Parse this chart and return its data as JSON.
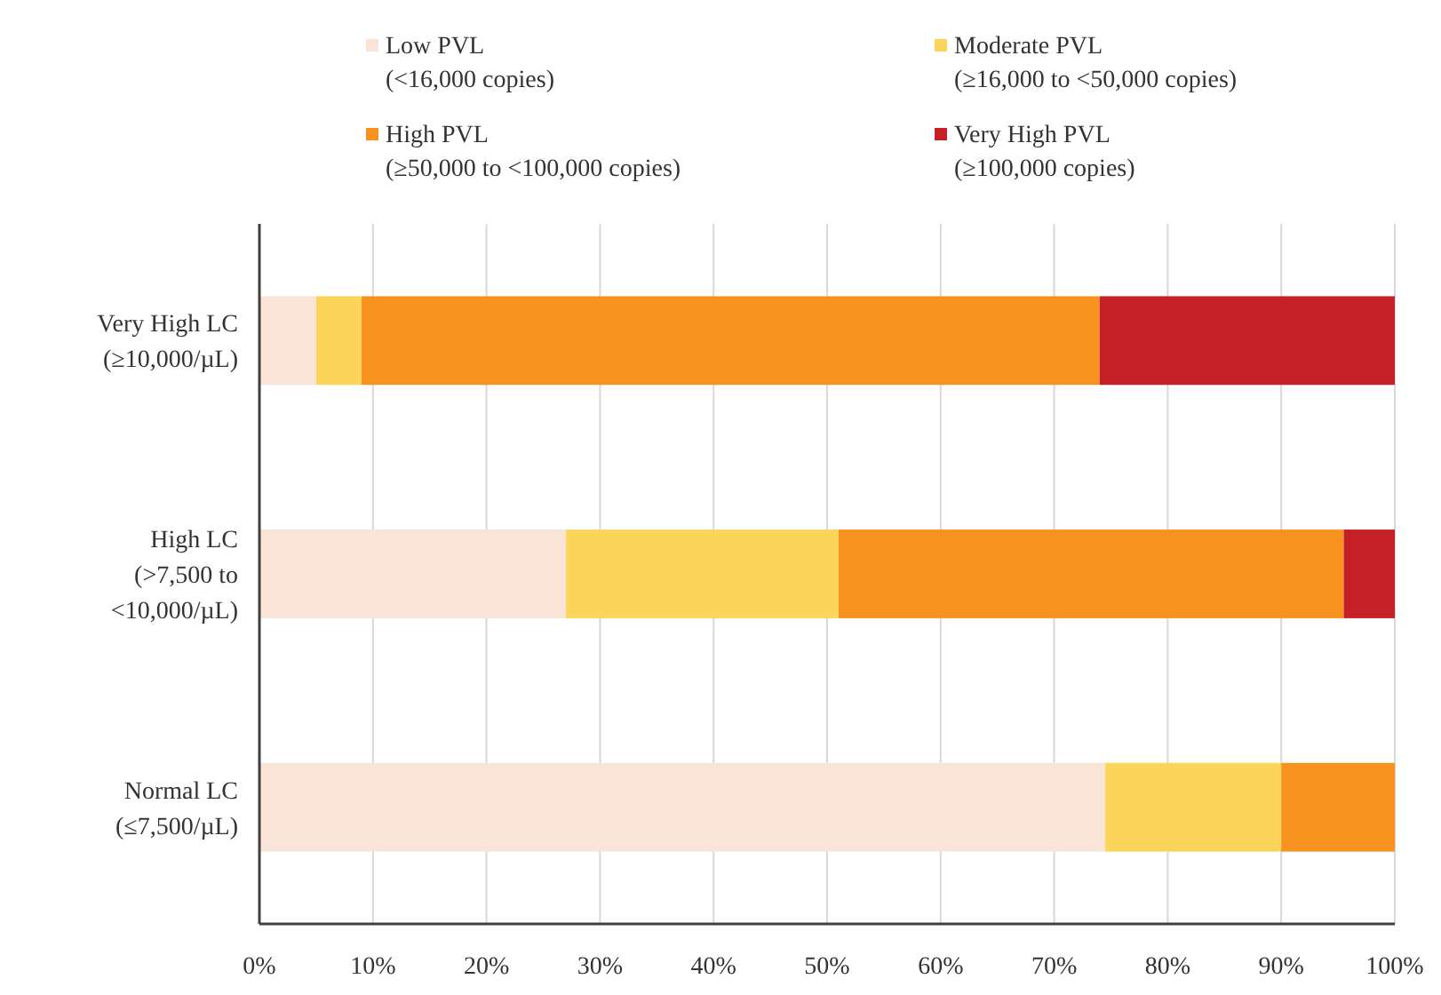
{
  "chart_data": {
    "type": "bar",
    "orientation": "horizontal",
    "stacked": true,
    "categories": [
      "Very High LC\n(≥10,000/µL)",
      "High LC\n(>7,500 to\n<10,000/µL)",
      "Normal LC\n(≤7,500/µL)"
    ],
    "series": [
      {
        "name": "Low PVL\n(<16,000 copies)",
        "color": "#f9e4d7",
        "values": [
          5,
          27,
          74.5
        ]
      },
      {
        "name": "Moderate PVL\n(≥16,000 to <50,000 copies)",
        "color": "#fbd55a",
        "values": [
          4,
          24,
          15.5
        ]
      },
      {
        "name": "High PVL\n(≥50,000 to <100,000 copies)",
        "color": "#f7921e",
        "values": [
          65,
          44.5,
          10
        ]
      },
      {
        "name": "Very High PVL\n(≥100,000 copies)",
        "color": "#c52026",
        "values": [
          26,
          4.5,
          0
        ]
      }
    ],
    "xlim": [
      0,
      100
    ],
    "xticks": [
      {
        "value": 0,
        "label": "0%"
      },
      {
        "value": 10,
        "label": "10%"
      },
      {
        "value": 20,
        "label": "20%"
      },
      {
        "value": 30,
        "label": "30%"
      },
      {
        "value": 40,
        "label": "40%"
      },
      {
        "value": 50,
        "label": "50%"
      },
      {
        "value": 60,
        "label": "60%"
      },
      {
        "value": 70,
        "label": "70%"
      },
      {
        "value": 80,
        "label": "80%"
      },
      {
        "value": 90,
        "label": "90%"
      },
      {
        "value": 100,
        "label": "100%"
      }
    ],
    "grid": "x",
    "legend": "top"
  }
}
